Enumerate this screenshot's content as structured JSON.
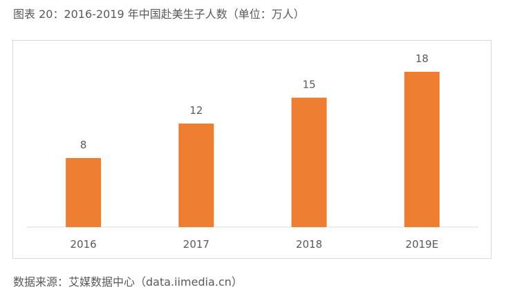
{
  "title": "图表 20：2016-2019 年中国赴美生子人数（单位：万人）",
  "source": "数据来源：艾媒数据中心（data.iimedia.cn）",
  "colors": {
    "bar": "#ED7D31",
    "axis": "#d9d9d9",
    "text": "#595959"
  },
  "chart_data": {
    "type": "bar",
    "title": "图表 20：2016-2019 年中国赴美生子人数（单位：万人）",
    "categories": [
      "2016",
      "2017",
      "2018",
      "2019E"
    ],
    "values": [
      8,
      12,
      15,
      18
    ],
    "data_labels": [
      "8",
      "12",
      "15",
      "18"
    ],
    "xlabel": "",
    "ylabel": "",
    "ylim": [
      0,
      20
    ],
    "grid": false,
    "legend": "none"
  }
}
